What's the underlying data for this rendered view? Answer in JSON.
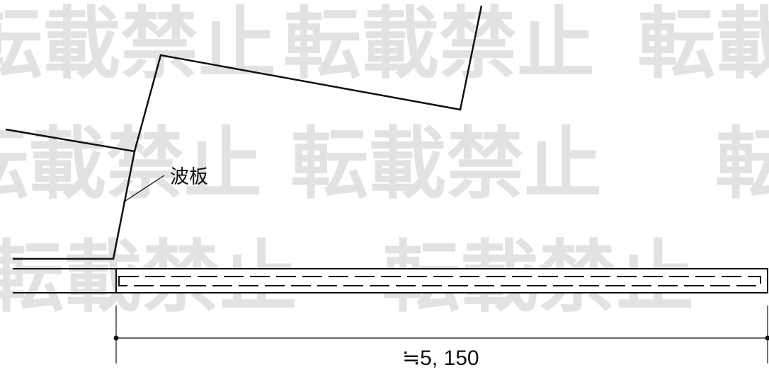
{
  "diagram": {
    "callout_label": "波板",
    "dimension_label": "≒5, 150",
    "watermark_text": "転載禁止",
    "colors": {
      "line": "#111111",
      "watermark": "#e2e2e2",
      "background": "#ffffff"
    }
  }
}
